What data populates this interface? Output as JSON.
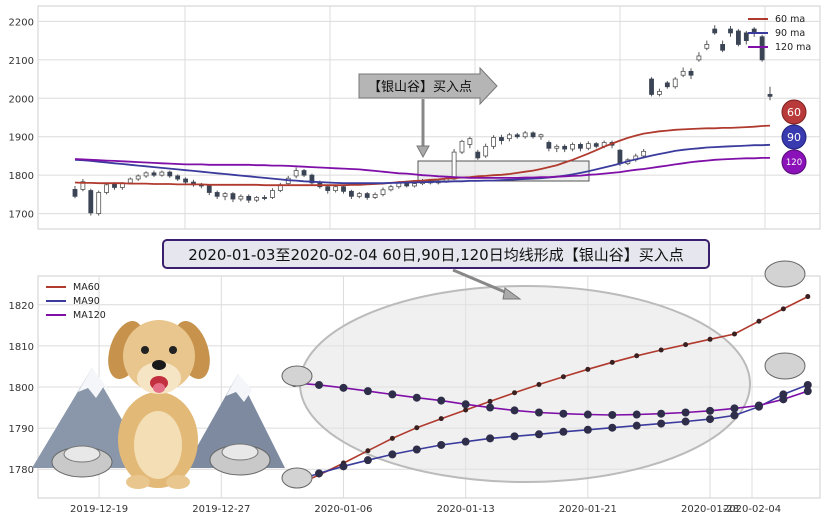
{
  "colors": {
    "ma60": "#b03a2e",
    "ma90": "#3b3b9e",
    "ma120": "#7f0fa8",
    "candle_down": "#3a4454",
    "grid": "#dcdcdc"
  },
  "top_chart": {
    "legend": [
      "60 ma",
      "90 ma",
      "120 ma"
    ],
    "yticks": [
      "2200",
      "2100",
      "2000",
      "1900",
      "1800",
      "1700"
    ],
    "yticks_values": [
      2200,
      2100,
      2000,
      1900,
      1800,
      1700
    ],
    "annotation": "【银山谷】买入点",
    "badges": [
      "60",
      "90",
      "120"
    ]
  },
  "banner": {
    "text": "2020-01-03至2020-02-04 60日,90日,120日均线形成【银山谷】买入点"
  },
  "bottom_chart": {
    "legend": [
      "MA60",
      "MA90",
      "MA120"
    ],
    "yticks": [
      "1820",
      "1810",
      "1800",
      "1790",
      "1780"
    ],
    "yticks_values": [
      1820,
      1810,
      1800,
      1790,
      1780
    ],
    "xticks": [
      "2019-12-19",
      "2019-12-27",
      "2020-01-06",
      "2020-01-13",
      "2020-01-21",
      "2020-01-28",
      "2020-02-04"
    ]
  },
  "chart_data": [
    {
      "type": "candlestick",
      "ylim": [
        1660,
        2240
      ],
      "series": [
        {
          "name": "60 ma",
          "values": [
            1781,
            1780,
            1780,
            1779,
            1779,
            1779,
            1779,
            1778,
            1778,
            1778,
            1777,
            1777,
            1777,
            1776,
            1776,
            1776,
            1776,
            1775,
            1775,
            1775,
            1775,
            1775,
            1775,
            1775,
            1774,
            1774,
            1774,
            1774,
            1774,
            1774,
            1774,
            1774,
            1774,
            1774,
            1774,
            1775,
            1775,
            1776,
            1777,
            1778,
            1780,
            1782,
            1783,
            1785,
            1786,
            1788,
            1789,
            1791,
            1792,
            1794,
            1795,
            1797,
            1798,
            1800,
            1801,
            1803,
            1806,
            1809,
            1812,
            1816,
            1821,
            1826,
            1833,
            1840,
            1848,
            1856,
            1865,
            1874,
            1882,
            1890,
            1897,
            1903,
            1908,
            1911,
            1914,
            1916,
            1918,
            1919,
            1920,
            1921,
            1922,
            1922,
            1923,
            1923,
            1924,
            1925,
            1926,
            1928,
            1929
          ]
        },
        {
          "name": "90 ma",
          "values": [
            1840,
            1839,
            1837,
            1835,
            1833,
            1831,
            1829,
            1827,
            1825,
            1823,
            1821,
            1819,
            1817,
            1815,
            1813,
            1811,
            1809,
            1807,
            1805,
            1803,
            1801,
            1799,
            1797,
            1795,
            1793,
            1791,
            1789,
            1787,
            1786,
            1784,
            1783,
            1782,
            1781,
            1780,
            1779,
            1779,
            1779,
            1779,
            1779,
            1779,
            1780,
            1780,
            1781,
            1781,
            1782,
            1782,
            1783,
            1783,
            1784,
            1784,
            1785,
            1785,
            1786,
            1786,
            1787,
            1788,
            1789,
            1790,
            1791,
            1792,
            1794,
            1796,
            1799,
            1802,
            1806,
            1810,
            1815,
            1820,
            1825,
            1830,
            1836,
            1841,
            1846,
            1851,
            1855,
            1859,
            1863,
            1866,
            1868,
            1870,
            1872,
            1873,
            1874,
            1875,
            1876,
            1877,
            1878,
            1878,
            1879
          ]
        },
        {
          "name": "120 ma",
          "values": [
            1842,
            1841,
            1840,
            1839,
            1838,
            1837,
            1836,
            1835,
            1834,
            1833,
            1832,
            1831,
            1830,
            1829,
            1828,
            1828,
            1828,
            1827,
            1827,
            1827,
            1827,
            1827,
            1827,
            1826,
            1826,
            1825,
            1825,
            1824,
            1823,
            1822,
            1821,
            1820,
            1819,
            1818,
            1817,
            1816,
            1815,
            1813,
            1811,
            1809,
            1807,
            1805,
            1804,
            1802,
            1800,
            1799,
            1797,
            1796,
            1795,
            1794,
            1793,
            1793,
            1793,
            1793,
            1793,
            1793,
            1793,
            1794,
            1794,
            1795,
            1795,
            1796,
            1797,
            1798,
            1799,
            1801,
            1802,
            1804,
            1806,
            1808,
            1811,
            1814,
            1816,
            1819,
            1822,
            1825,
            1828,
            1831,
            1834,
            1836,
            1838,
            1840,
            1841,
            1842,
            1843,
            1844,
            1844,
            1845,
            1845
          ]
        },
        {
          "name": "ohlc",
          "candles": [
            [
              1745,
              1763,
              1740,
              1772,
              0
            ],
            [
              1763,
              1783,
              1758,
              1790,
              1
            ],
            [
              1760,
              1702,
              1695,
              1765,
              0
            ],
            [
              1700,
              1755,
              1695,
              1760,
              1
            ],
            [
              1755,
              1775,
              1750,
              1780,
              1
            ],
            [
              1778,
              1768,
              1762,
              1782,
              0
            ],
            [
              1768,
              1778,
              1762,
              1782,
              1
            ],
            [
              1780,
              1790,
              1776,
              1794,
              1
            ],
            [
              1790,
              1798,
              1785,
              1802,
              1
            ],
            [
              1798,
              1806,
              1793,
              1810,
              1
            ],
            [
              1806,
              1800,
              1795,
              1812,
              0
            ],
            [
              1800,
              1808,
              1796,
              1812,
              1
            ],
            [
              1808,
              1798,
              1793,
              1812,
              0
            ],
            [
              1798,
              1790,
              1785,
              1802,
              0
            ],
            [
              1790,
              1782,
              1776,
              1794,
              0
            ],
            [
              1782,
              1775,
              1770,
              1788,
              0
            ],
            [
              1775,
              1772,
              1766,
              1780,
              0
            ],
            [
              1772,
              1755,
              1748,
              1776,
              0
            ],
            [
              1755,
              1745,
              1738,
              1760,
              0
            ],
            [
              1745,
              1752,
              1735,
              1756,
              1
            ],
            [
              1752,
              1738,
              1730,
              1756,
              0
            ],
            [
              1738,
              1745,
              1732,
              1750,
              1
            ],
            [
              1745,
              1735,
              1728,
              1750,
              0
            ],
            [
              1735,
              1742,
              1730,
              1746,
              1
            ],
            [
              1742,
              1740,
              1735,
              1748,
              0
            ],
            [
              1742,
              1760,
              1738,
              1766,
              1
            ],
            [
              1760,
              1775,
              1756,
              1780,
              1
            ],
            [
              1778,
              1792,
              1774,
              1798,
              1
            ],
            [
              1798,
              1812,
              1792,
              1820,
              1
            ],
            [
              1812,
              1800,
              1795,
              1816,
              0
            ],
            [
              1800,
              1780,
              1775,
              1804,
              0
            ],
            [
              1780,
              1770,
              1765,
              1786,
              0
            ],
            [
              1770,
              1760,
              1752,
              1775,
              0
            ],
            [
              1760,
              1770,
              1755,
              1776,
              1
            ],
            [
              1770,
              1758,
              1752,
              1774,
              0
            ],
            [
              1758,
              1745,
              1738,
              1762,
              0
            ],
            [
              1745,
              1752,
              1740,
              1756,
              1
            ],
            [
              1752,
              1742,
              1736,
              1756,
              0
            ],
            [
              1742,
              1750,
              1738,
              1755,
              1
            ],
            [
              1750,
              1762,
              1745,
              1768,
              1
            ],
            [
              1762,
              1770,
              1758,
              1775,
              1
            ],
            [
              1770,
              1780,
              1765,
              1785,
              1
            ],
            [
              1780,
              1772,
              1768,
              1786,
              0
            ],
            [
              1772,
              1778,
              1768,
              1782,
              1
            ],
            [
              1778,
              1785,
              1774,
              1790,
              1
            ],
            [
              1785,
              1780,
              1776,
              1790,
              0
            ],
            [
              1780,
              1785,
              1776,
              1790,
              1
            ],
            [
              1785,
              1790,
              1780,
              1795,
              1
            ],
            [
              1790,
              1860,
              1788,
              1868,
              1
            ],
            [
              1860,
              1888,
              1855,
              1892,
              1
            ],
            [
              1880,
              1895,
              1870,
              1900,
              1
            ],
            [
              1860,
              1845,
              1840,
              1866,
              0
            ],
            [
              1850,
              1875,
              1845,
              1882,
              1
            ],
            [
              1875,
              1898,
              1868,
              1904,
              1
            ],
            [
              1898,
              1890,
              1880,
              1905,
              0
            ],
            [
              1895,
              1905,
              1888,
              1910,
              1
            ],
            [
              1905,
              1900,
              1895,
              1910,
              0
            ],
            [
              1900,
              1910,
              1895,
              1915,
              1
            ],
            [
              1910,
              1900,
              1895,
              1914,
              0
            ],
            [
              1900,
              1905,
              1892,
              1908,
              1
            ],
            [
              1885,
              1870,
              1862,
              1890,
              0
            ],
            [
              1870,
              1875,
              1860,
              1880,
              1
            ],
            [
              1875,
              1868,
              1860,
              1880,
              0
            ],
            [
              1868,
              1880,
              1862,
              1885,
              1
            ],
            [
              1880,
              1870,
              1862,
              1885,
              0
            ],
            [
              1870,
              1882,
              1865,
              1888,
              1
            ],
            [
              1882,
              1875,
              1870,
              1886,
              0
            ],
            [
              1875,
              1885,
              1870,
              1890,
              1
            ],
            [
              1885,
              1878,
              1870,
              1890,
              0
            ],
            [
              1865,
              1830,
              1824,
              1868,
              0
            ],
            [
              1830,
              1840,
              1826,
              1844,
              1
            ],
            [
              1840,
              1850,
              1835,
              1856,
              1
            ],
            [
              1850,
              1862,
              1846,
              1868,
              1
            ],
            [
              2050,
              2010,
              2005,
              2055,
              0
            ],
            [
              2010,
              2018,
              2005,
              2025,
              1
            ],
            [
              2040,
              2030,
              2025,
              2045,
              0
            ],
            [
              2030,
              2050,
              2025,
              2055,
              1
            ],
            [
              2060,
              2070,
              2055,
              2080,
              1
            ],
            [
              2070,
              2060,
              2050,
              2078,
              0
            ],
            [
              2100,
              2110,
              2095,
              2120,
              1
            ],
            [
              2130,
              2140,
              2125,
              2150,
              1
            ],
            [
              2180,
              2170,
              2165,
              2190,
              0
            ],
            [
              2140,
              2125,
              2120,
              2150,
              0
            ],
            [
              2180,
              2170,
              2160,
              2188,
              0
            ],
            [
              2175,
              2140,
              2135,
              2180,
              0
            ],
            [
              2170,
              2150,
              2140,
              2175,
              0
            ],
            [
              2180,
              2170,
              2160,
              2185,
              0
            ],
            [
              2160,
              2100,
              2095,
              2165,
              0
            ],
            [
              2010,
              2005,
              1995,
              2030,
              0
            ]
          ]
        }
      ]
    },
    {
      "type": "line",
      "ylim": [
        1773,
        1827
      ],
      "xlim": [
        -10.5,
        21.5
      ],
      "series": [
        {
          "name": "MA60",
          "values": [
            1776.0,
            1778.6,
            1781.5,
            1784.5,
            1787.5,
            1790.1,
            1792.3,
            1794.4,
            1796.5,
            1798.6,
            1800.6,
            1802.5,
            1804.3,
            1806.0,
            1807.6,
            1809.0,
            1810.3,
            1811.6,
            1812.9,
            1816.0,
            1819.0,
            1822.0
          ]
        },
        {
          "name": "MA90",
          "values": [
            1777.0,
            1779.0,
            1780.7,
            1782.2,
            1783.6,
            1784.8,
            1785.9,
            1786.7,
            1787.5,
            1788.0,
            1788.5,
            1789.1,
            1789.6,
            1790.1,
            1790.6,
            1791.1,
            1791.6,
            1792.2,
            1793.1,
            1795.2,
            1798.2,
            1800.5
          ]
        },
        {
          "name": "MA120",
          "values": [
            1801.0,
            1800.5,
            1799.8,
            1799.0,
            1798.2,
            1797.4,
            1796.7,
            1795.8,
            1795.0,
            1794.3,
            1793.8,
            1793.5,
            1793.3,
            1793.2,
            1793.3,
            1793.5,
            1793.8,
            1794.2,
            1794.8,
            1795.5,
            1797.0,
            1799.0
          ]
        }
      ]
    }
  ]
}
